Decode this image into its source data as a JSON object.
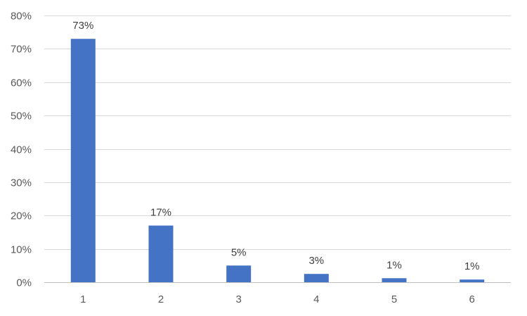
{
  "chart_data": {
    "type": "bar",
    "categories": [
      "1",
      "2",
      "3",
      "4",
      "5",
      "6"
    ],
    "values": [
      73,
      17,
      5,
      2.5,
      1.2,
      0.8
    ],
    "data_labels": [
      "73%",
      "17%",
      "5%",
      "3%",
      "1%",
      "1%"
    ],
    "y_ticks": [
      "0%",
      "10%",
      "20%",
      "30%",
      "40%",
      "50%",
      "60%",
      "70%",
      "80%"
    ],
    "ylim": [
      0,
      80
    ],
    "grid": true,
    "bar_color": "#4472c4"
  }
}
